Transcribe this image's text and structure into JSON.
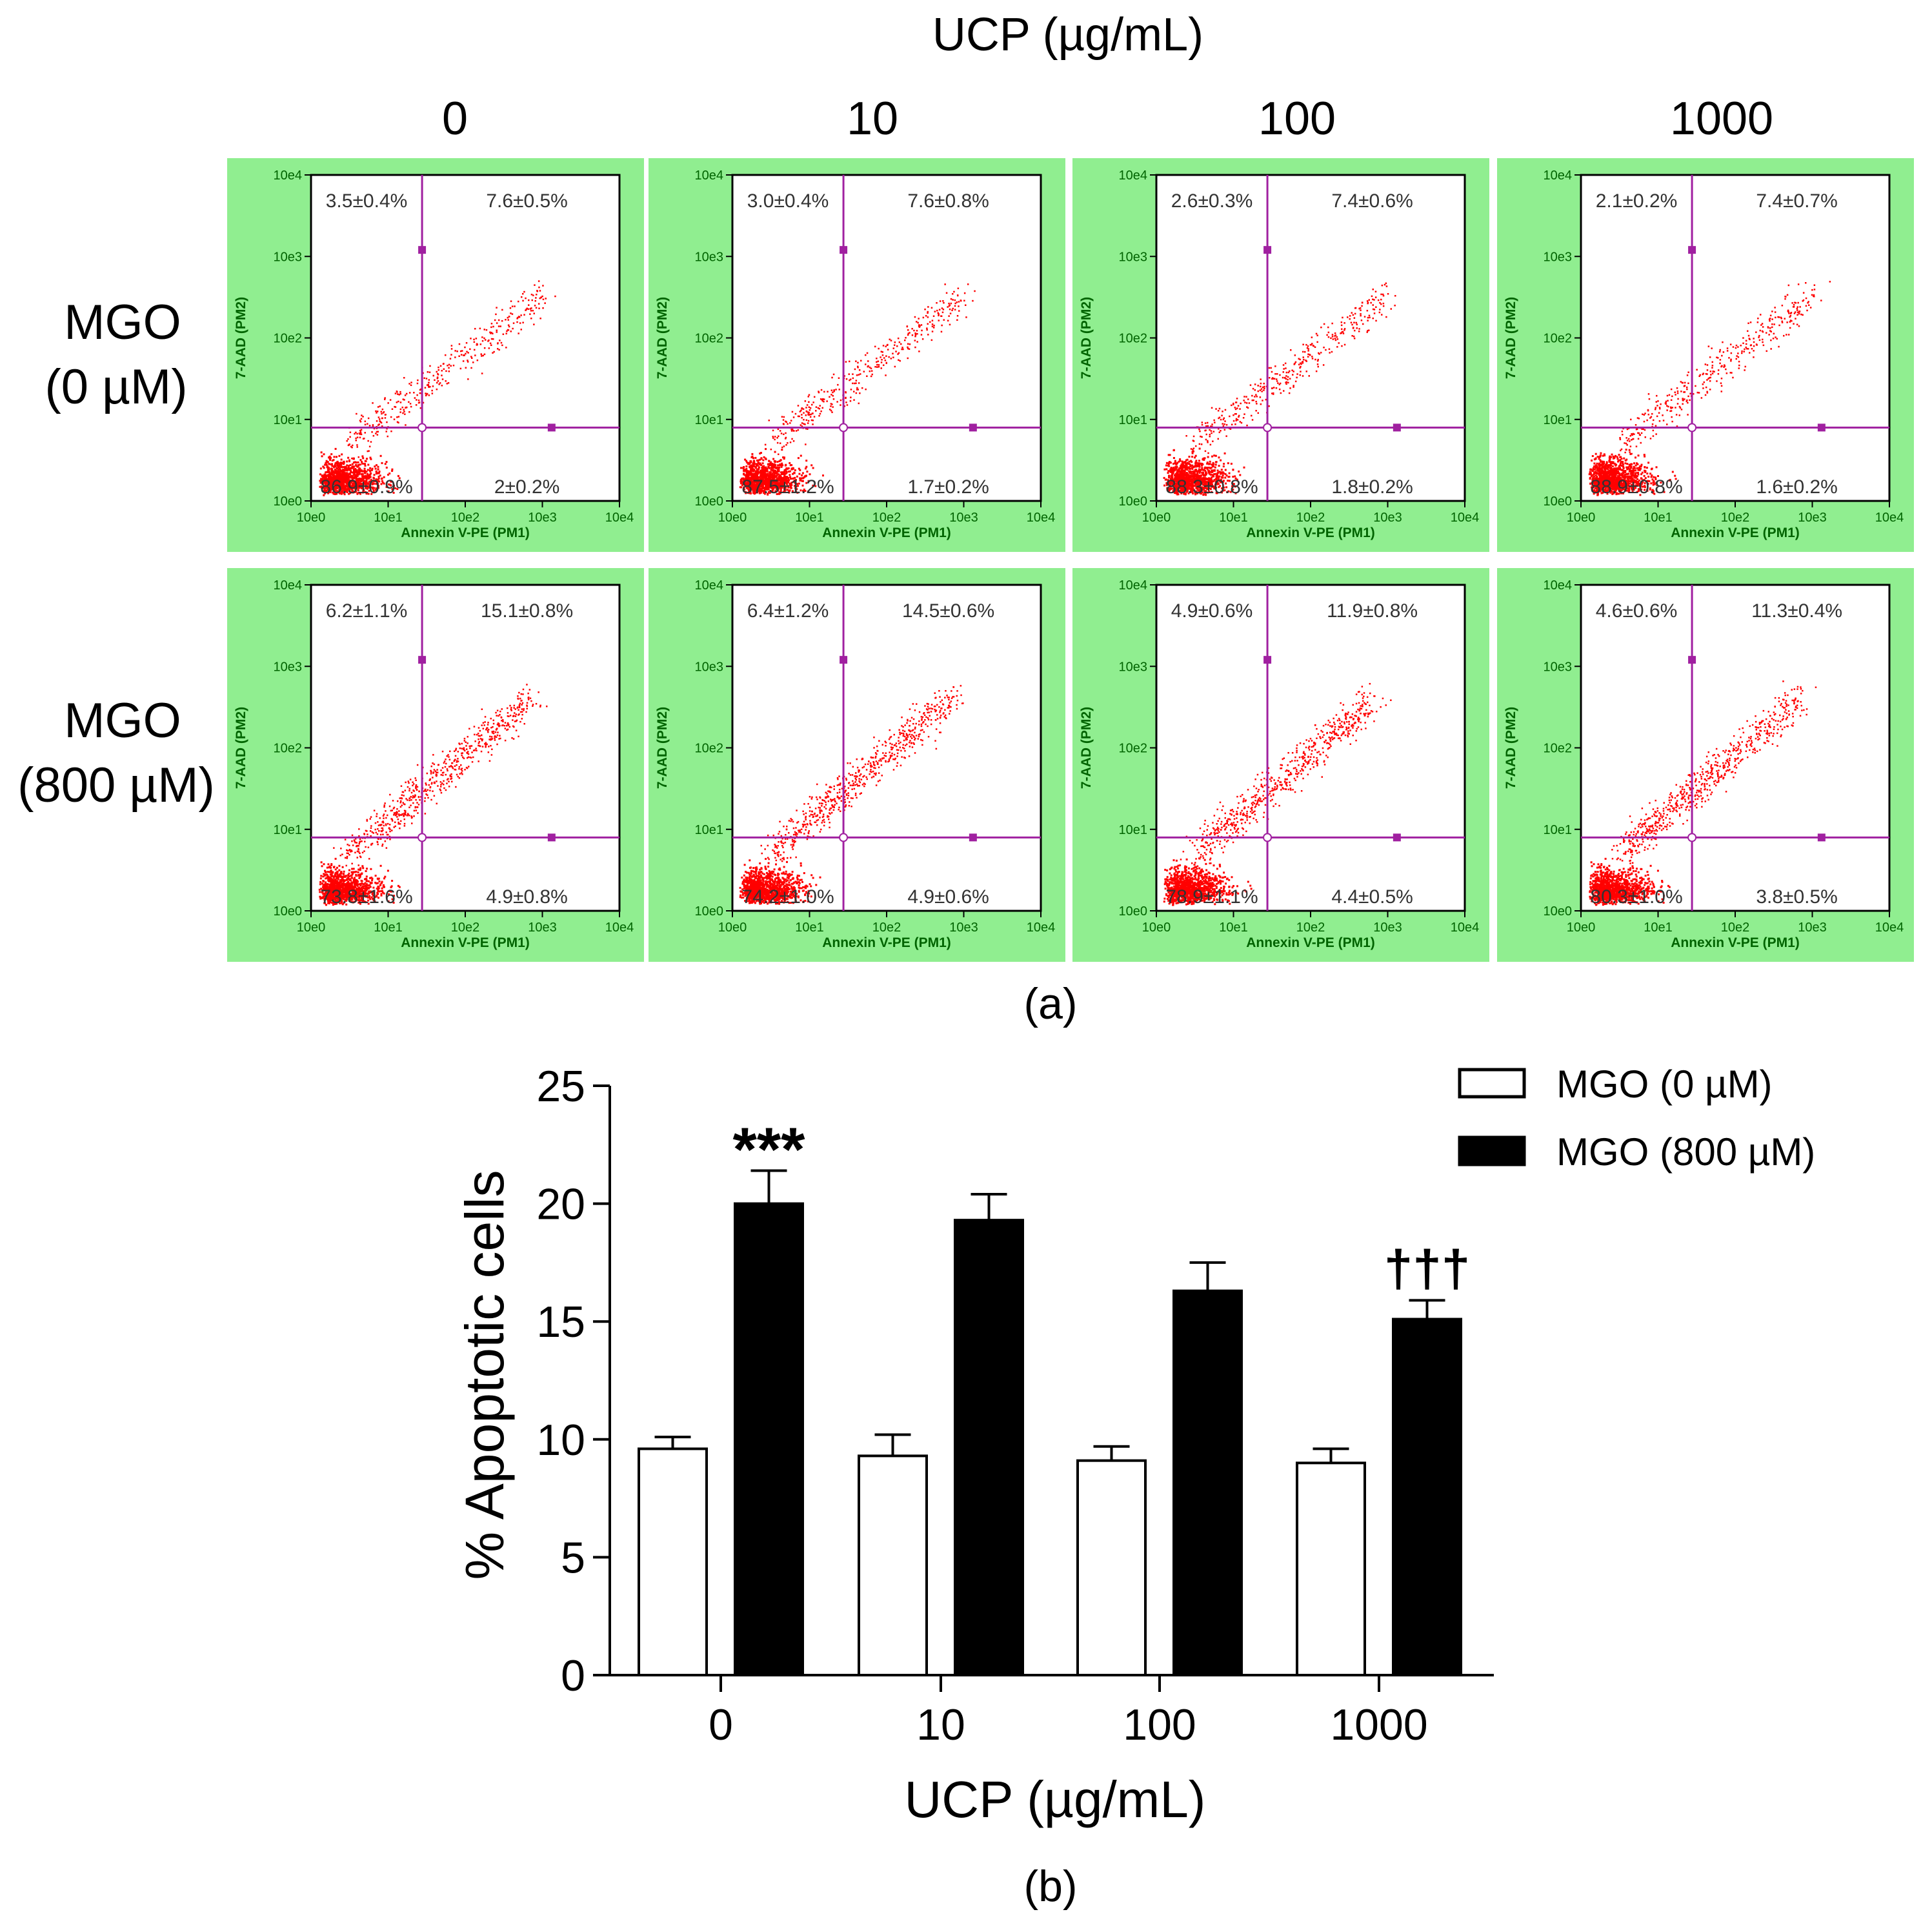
{
  "panel_a": {
    "header": "UCP (µg/mL)",
    "columns": [
      "0",
      "10",
      "100",
      "1000"
    ],
    "rows": [
      {
        "label_line1": "MGO",
        "label_line2": "(0 µM)"
      },
      {
        "label_line1": "MGO",
        "label_line2": "(800 µM)"
      }
    ],
    "panel_label": "(a)",
    "plot": {
      "x_axis_label": "Annexin V-PE (PM1)",
      "y_axis_label": "7-AAD (PM2)",
      "ticks": [
        "10e0",
        "10e1",
        "10e2",
        "10e3",
        "10e4"
      ],
      "panel_bg_color": "#90ee90",
      "dot_color": "#ff0000",
      "gate_color": "#a020a0"
    },
    "quadrants": [
      [
        {
          "ul": "3.5±0.4%",
          "ur": "7.6±0.5%",
          "ll": "86.9±0.9%",
          "lr": "2±0.2%"
        },
        {
          "ul": "3.0±0.4%",
          "ur": "7.6±0.8%",
          "ll": "87.5±1.2%",
          "lr": "1.7±0.2%"
        },
        {
          "ul": "2.6±0.3%",
          "ur": "7.4±0.6%",
          "ll": "88.3±0.8%",
          "lr": "1.8±0.2%"
        },
        {
          "ul": "2.1±0.2%",
          "ur": "7.4±0.7%",
          "ll": "88.9±0.8%",
          "lr": "1.6±0.2%"
        }
      ],
      [
        {
          "ul": "6.2±1.1%",
          "ur": "15.1±0.8%",
          "ll": "73.8±1.6%",
          "lr": "4.9±0.8%"
        },
        {
          "ul": "6.4±1.2%",
          "ur": "14.5±0.6%",
          "ll": "74.2±1.0%",
          "lr": "4.9±0.6%"
        },
        {
          "ul": "4.9±0.6%",
          "ur": "11.9±0.8%",
          "ll": "78.9±1.1%",
          "lr": "4.4±0.5%"
        },
        {
          "ul": "4.6±0.6%",
          "ur": "11.3±0.4%",
          "ll": "80.3±1.0%",
          "lr": "3.8±0.5%"
        }
      ]
    ]
  },
  "chart_data": {
    "type": "bar",
    "categories": [
      "0",
      "10",
      "100",
      "1000"
    ],
    "series": [
      {
        "name": "MGO (0 µM)",
        "values": [
          9.6,
          9.3,
          9.1,
          9.0
        ],
        "errors": [
          0.5,
          0.9,
          0.6,
          0.6
        ],
        "color": "#ffffff"
      },
      {
        "name": "MGO (800 µM)",
        "values": [
          20.0,
          19.3,
          16.3,
          15.1
        ],
        "errors": [
          1.4,
          1.1,
          1.2,
          0.8
        ],
        "color": "#000000"
      }
    ],
    "xlabel": "UCP (µg/mL)",
    "ylabel": "% Apoptotic cells",
    "ylim": [
      0,
      25
    ],
    "yticks": [
      "0",
      "5",
      "10",
      "15",
      "20",
      "25"
    ],
    "annotations": [
      {
        "text": "***",
        "category": "0",
        "series": 1
      },
      {
        "text": "†††",
        "category": "1000",
        "series": 1
      }
    ],
    "legend_position": "top-right",
    "grid": false,
    "panel_label": "(b)"
  }
}
